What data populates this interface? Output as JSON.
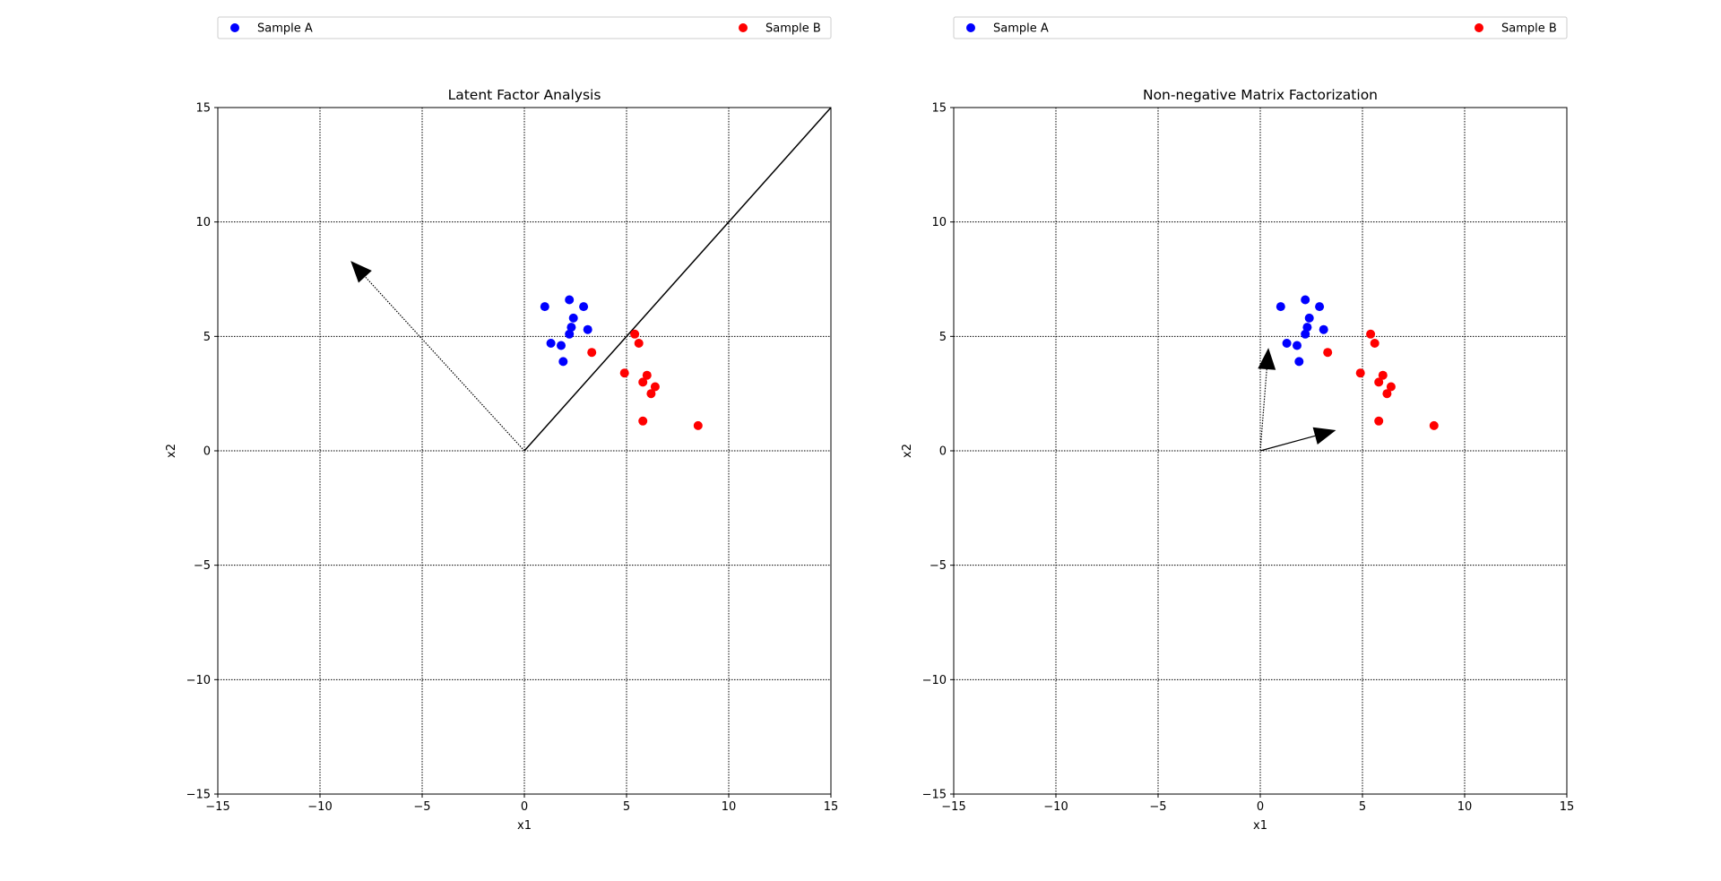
{
  "chart_data": [
    {
      "type": "scatter",
      "title": "Latent Factor Analysis",
      "xlabel": "x1",
      "ylabel": "x2",
      "xlim": [
        -15,
        15
      ],
      "ylim": [
        -15,
        15
      ],
      "xticks": [
        -15,
        -10,
        -5,
        0,
        5,
        10,
        15
      ],
      "yticks": [
        -15,
        -10,
        -5,
        0,
        5,
        10,
        15
      ],
      "grid": true,
      "legend_position": "top",
      "series": [
        {
          "name": "Sample A",
          "color": "#0000ff",
          "points": [
            [
              1.0,
              6.3
            ],
            [
              2.2,
              6.6
            ],
            [
              2.9,
              6.3
            ],
            [
              2.4,
              5.8
            ],
            [
              2.3,
              5.4
            ],
            [
              3.1,
              5.3
            ],
            [
              2.2,
              5.1
            ],
            [
              1.3,
              4.7
            ],
            [
              1.8,
              4.6
            ],
            [
              1.9,
              3.9
            ]
          ]
        },
        {
          "name": "Sample B",
          "color": "#ff0000",
          "points": [
            [
              5.4,
              5.1
            ],
            [
              5.6,
              4.7
            ],
            [
              3.3,
              4.3
            ],
            [
              4.9,
              3.4
            ],
            [
              6.0,
              3.3
            ],
            [
              5.8,
              3.0
            ],
            [
              6.4,
              2.8
            ],
            [
              6.2,
              2.5
            ],
            [
              5.8,
              1.3
            ],
            [
              8.5,
              1.1
            ]
          ]
        }
      ],
      "annotations": [
        {
          "kind": "arrow",
          "style": "dotted",
          "from": [
            0,
            0
          ],
          "to": [
            -8.5,
            8.3
          ]
        },
        {
          "kind": "line",
          "style": "solid",
          "from": [
            0,
            0
          ],
          "to": [
            15,
            15
          ]
        }
      ]
    },
    {
      "type": "scatter",
      "title": "Non-negative Matrix Factorization",
      "xlabel": "x1",
      "ylabel": "x2",
      "xlim": [
        -15,
        15
      ],
      "ylim": [
        -15,
        15
      ],
      "xticks": [
        -15,
        -10,
        -5,
        0,
        5,
        10,
        15
      ],
      "yticks": [
        -15,
        -10,
        -5,
        0,
        5,
        10,
        15
      ],
      "grid": true,
      "legend_position": "top",
      "series": [
        {
          "name": "Sample A",
          "color": "#0000ff",
          "points": [
            [
              1.0,
              6.3
            ],
            [
              2.2,
              6.6
            ],
            [
              2.9,
              6.3
            ],
            [
              2.4,
              5.8
            ],
            [
              2.3,
              5.4
            ],
            [
              3.1,
              5.3
            ],
            [
              2.2,
              5.1
            ],
            [
              1.3,
              4.7
            ],
            [
              1.8,
              4.6
            ],
            [
              1.9,
              3.9
            ]
          ]
        },
        {
          "name": "Sample B",
          "color": "#ff0000",
          "points": [
            [
              5.4,
              5.1
            ],
            [
              5.6,
              4.7
            ],
            [
              3.3,
              4.3
            ],
            [
              4.9,
              3.4
            ],
            [
              6.0,
              3.3
            ],
            [
              5.8,
              3.0
            ],
            [
              6.4,
              2.8
            ],
            [
              6.2,
              2.5
            ],
            [
              5.8,
              1.3
            ],
            [
              8.5,
              1.1
            ]
          ]
        }
      ],
      "annotations": [
        {
          "kind": "arrow",
          "style": "dotted",
          "from": [
            0,
            0
          ],
          "to": [
            0.4,
            4.5
          ]
        },
        {
          "kind": "arrow",
          "style": "solid",
          "from": [
            0,
            0
          ],
          "to": [
            3.7,
            0.9
          ]
        }
      ]
    }
  ]
}
